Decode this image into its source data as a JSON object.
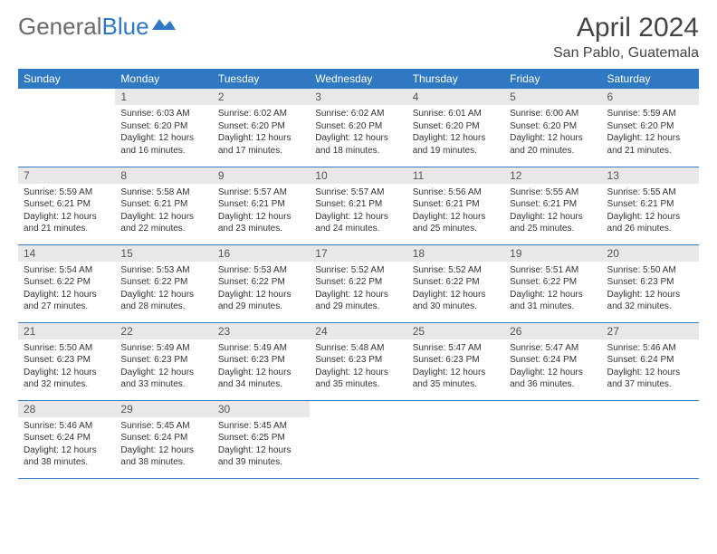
{
  "logo": {
    "part1": "General",
    "part2": "Blue"
  },
  "title": "April 2024",
  "location": "San Pablo, Guatemala",
  "colors": {
    "header_bg": "#2f78c2",
    "header_text": "#ffffff",
    "daynum_bg": "#e8e8e8",
    "border": "#2f78c2",
    "page_bg": "#ffffff",
    "text": "#333333"
  },
  "typography": {
    "month_fontsize": 30,
    "location_fontsize": 16,
    "header_fontsize": 12,
    "daynum_fontsize": 12,
    "info_fontsize": 10
  },
  "weekdays": [
    "Sunday",
    "Monday",
    "Tuesday",
    "Wednesday",
    "Thursday",
    "Friday",
    "Saturday"
  ],
  "weeks": [
    [
      null,
      {
        "n": "1",
        "sr": "6:03 AM",
        "ss": "6:20 PM",
        "dl": "12 hours and 16 minutes."
      },
      {
        "n": "2",
        "sr": "6:02 AM",
        "ss": "6:20 PM",
        "dl": "12 hours and 17 minutes."
      },
      {
        "n": "3",
        "sr": "6:02 AM",
        "ss": "6:20 PM",
        "dl": "12 hours and 18 minutes."
      },
      {
        "n": "4",
        "sr": "6:01 AM",
        "ss": "6:20 PM",
        "dl": "12 hours and 19 minutes."
      },
      {
        "n": "5",
        "sr": "6:00 AM",
        "ss": "6:20 PM",
        "dl": "12 hours and 20 minutes."
      },
      {
        "n": "6",
        "sr": "5:59 AM",
        "ss": "6:20 PM",
        "dl": "12 hours and 21 minutes."
      }
    ],
    [
      {
        "n": "7",
        "sr": "5:59 AM",
        "ss": "6:21 PM",
        "dl": "12 hours and 21 minutes."
      },
      {
        "n": "8",
        "sr": "5:58 AM",
        "ss": "6:21 PM",
        "dl": "12 hours and 22 minutes."
      },
      {
        "n": "9",
        "sr": "5:57 AM",
        "ss": "6:21 PM",
        "dl": "12 hours and 23 minutes."
      },
      {
        "n": "10",
        "sr": "5:57 AM",
        "ss": "6:21 PM",
        "dl": "12 hours and 24 minutes."
      },
      {
        "n": "11",
        "sr": "5:56 AM",
        "ss": "6:21 PM",
        "dl": "12 hours and 25 minutes."
      },
      {
        "n": "12",
        "sr": "5:55 AM",
        "ss": "6:21 PM",
        "dl": "12 hours and 25 minutes."
      },
      {
        "n": "13",
        "sr": "5:55 AM",
        "ss": "6:21 PM",
        "dl": "12 hours and 26 minutes."
      }
    ],
    [
      {
        "n": "14",
        "sr": "5:54 AM",
        "ss": "6:22 PM",
        "dl": "12 hours and 27 minutes."
      },
      {
        "n": "15",
        "sr": "5:53 AM",
        "ss": "6:22 PM",
        "dl": "12 hours and 28 minutes."
      },
      {
        "n": "16",
        "sr": "5:53 AM",
        "ss": "6:22 PM",
        "dl": "12 hours and 29 minutes."
      },
      {
        "n": "17",
        "sr": "5:52 AM",
        "ss": "6:22 PM",
        "dl": "12 hours and 29 minutes."
      },
      {
        "n": "18",
        "sr": "5:52 AM",
        "ss": "6:22 PM",
        "dl": "12 hours and 30 minutes."
      },
      {
        "n": "19",
        "sr": "5:51 AM",
        "ss": "6:22 PM",
        "dl": "12 hours and 31 minutes."
      },
      {
        "n": "20",
        "sr": "5:50 AM",
        "ss": "6:23 PM",
        "dl": "12 hours and 32 minutes."
      }
    ],
    [
      {
        "n": "21",
        "sr": "5:50 AM",
        "ss": "6:23 PM",
        "dl": "12 hours and 32 minutes."
      },
      {
        "n": "22",
        "sr": "5:49 AM",
        "ss": "6:23 PM",
        "dl": "12 hours and 33 minutes."
      },
      {
        "n": "23",
        "sr": "5:49 AM",
        "ss": "6:23 PM",
        "dl": "12 hours and 34 minutes."
      },
      {
        "n": "24",
        "sr": "5:48 AM",
        "ss": "6:23 PM",
        "dl": "12 hours and 35 minutes."
      },
      {
        "n": "25",
        "sr": "5:47 AM",
        "ss": "6:23 PM",
        "dl": "12 hours and 35 minutes."
      },
      {
        "n": "26",
        "sr": "5:47 AM",
        "ss": "6:24 PM",
        "dl": "12 hours and 36 minutes."
      },
      {
        "n": "27",
        "sr": "5:46 AM",
        "ss": "6:24 PM",
        "dl": "12 hours and 37 minutes."
      }
    ],
    [
      {
        "n": "28",
        "sr": "5:46 AM",
        "ss": "6:24 PM",
        "dl": "12 hours and 38 minutes."
      },
      {
        "n": "29",
        "sr": "5:45 AM",
        "ss": "6:24 PM",
        "dl": "12 hours and 38 minutes."
      },
      {
        "n": "30",
        "sr": "5:45 AM",
        "ss": "6:25 PM",
        "dl": "12 hours and 39 minutes."
      },
      null,
      null,
      null,
      null
    ]
  ],
  "labels": {
    "sunrise": "Sunrise:",
    "sunset": "Sunset:",
    "daylight": "Daylight:"
  }
}
